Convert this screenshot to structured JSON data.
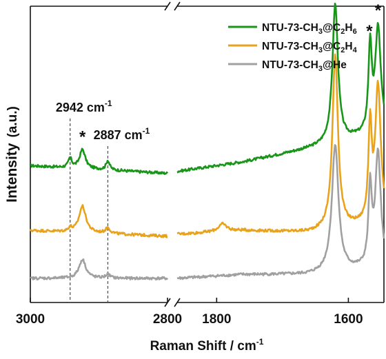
{
  "chart_data": {
    "type": "line",
    "xlabel_main": "Raman Shift / cm",
    "xlabel_sup": "-1",
    "ylabel_main": "Intensity",
    "ylabel_unit": "(a.u.)",
    "panels": [
      {
        "xlim": [
          3000,
          2800
        ],
        "ticks": [
          {
            "label": "3000",
            "value": 3000
          },
          {
            "label": "2800",
            "value": 2800
          }
        ]
      },
      {
        "xlim": [
          1860,
          1546
        ],
        "ticks": [
          {
            "label": "1800",
            "value": 1800
          },
          {
            "label": "1600",
            "value": 1600
          }
        ]
      }
    ],
    "legend": {
      "placement": "top-right",
      "entries": [
        {
          "base": "NTU-73-CH",
          "sub1": "3",
          "mid": "@C",
          "sub2": "2",
          "tail": "H",
          "sub3": "6",
          "color": "#199619"
        },
        {
          "base": "NTU-73-CH",
          "sub1": "3",
          "mid": "@C",
          "sub2": "2",
          "tail": "H",
          "sub3": "4",
          "color": "#e8a21c"
        },
        {
          "base": "NTU-73-CH",
          "sub1": "3",
          "mid": "@He",
          "sub2": "",
          "tail": "",
          "sub3": "",
          "color": "#a0a0a0"
        }
      ]
    },
    "annotations": [
      {
        "main": "2942 cm",
        "sup": "-1",
        "x": 2942,
        "panel": 0
      },
      {
        "main": "2887 cm",
        "sup": "-1",
        "x": 2887,
        "panel": 0
      }
    ],
    "star_markers": [
      {
        "label": "*",
        "panel": 0,
        "x": 2924
      },
      {
        "label": "*",
        "panel": 1,
        "x": 1620
      },
      {
        "label": "*",
        "panel": 1,
        "x": 1568
      },
      {
        "label": "*",
        "panel": 1,
        "x": 1555
      }
    ],
    "series": [
      {
        "name": "NTU-73-CH3@C2H6",
        "color": "#199619",
        "panel0": {
          "baseline": [
            [
              3000,
              0.1
            ],
            [
              2800,
              0.06
            ]
          ],
          "peaks": [
            [
              2942,
              0.05,
              3
            ],
            [
              2924,
              0.1,
              5
            ],
            [
              2887,
              0.05,
              3
            ]
          ]
        },
        "panel1": {
          "baseline": [
            [
              1860,
              0.07
            ],
            [
              1760,
              0.12
            ],
            [
              1660,
              0.19
            ],
            [
              1546,
              0.28
            ]
          ],
          "peaks": [
            [
              1620,
              0.73,
              5
            ],
            [
              1567,
              0.45,
              3
            ],
            [
              1555,
              0.55,
              5
            ]
          ]
        }
      },
      {
        "name": "NTU-73-CH3@C2H4",
        "color": "#e8a21c",
        "panel0": {
          "baseline": [
            [
              3000,
              0.02
            ],
            [
              2800,
              -0.01
            ]
          ],
          "peaks": [
            [
              2942,
              0.02,
              3
            ],
            [
              2924,
              0.14,
              6
            ],
            [
              2887,
              0.03,
              4
            ]
          ]
        },
        "panel1": {
          "baseline": [
            [
              1860,
              0.0
            ],
            [
              1760,
              0.02
            ],
            [
              1660,
              0.01
            ],
            [
              1546,
              0.06
            ]
          ],
          "peaks": [
            [
              1791,
              0.04,
              8
            ],
            [
              1620,
              0.92,
              5
            ],
            [
              1567,
              0.5,
              3
            ],
            [
              1555,
              0.72,
              5
            ]
          ]
        }
      },
      {
        "name": "NTU-73-CH3@He",
        "color": "#a0a0a0",
        "panel0": {
          "baseline": [
            [
              3000,
              0.0
            ],
            [
              2800,
              0.0
            ]
          ],
          "peaks": [
            [
              2924,
              0.1,
              6
            ],
            [
              2887,
              0.02,
              4
            ]
          ]
        },
        "panel1": {
          "baseline": [
            [
              1860,
              0.0
            ],
            [
              1760,
              0.02
            ],
            [
              1660,
              0.02
            ],
            [
              1546,
              0.06
            ]
          ],
          "peaks": [
            [
              1620,
              0.67,
              6
            ],
            [
              1567,
              0.4,
              3
            ],
            [
              1555,
              0.6,
              5
            ]
          ]
        }
      }
    ]
  }
}
